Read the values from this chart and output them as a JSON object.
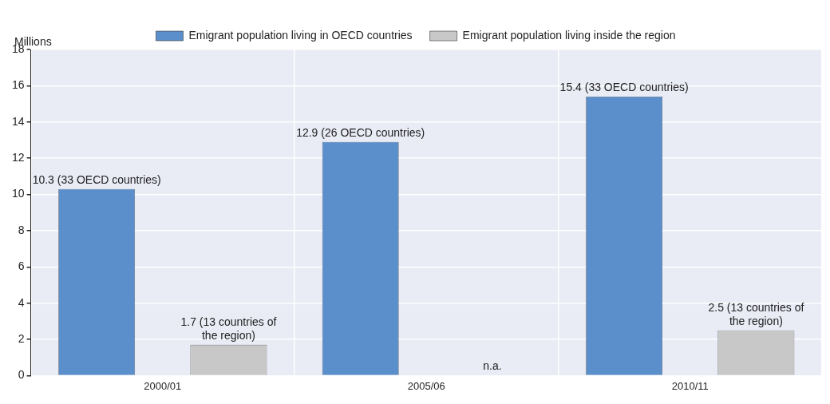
{
  "chart_data": {
    "type": "bar",
    "ylabel": "Millions",
    "categories": [
      "2000/01",
      "2005/06",
      "2010/11"
    ],
    "series": [
      {
        "name": "Emigrant population living in OECD countries",
        "color": "#5a8fcb",
        "values": [
          10.3,
          12.9,
          15.4
        ],
        "value_labels": [
          "10.3 (33 OECD countries)",
          "12.9 (26 OECD countries)",
          "15.4 (33 OECD countries)"
        ]
      },
      {
        "name": "Emigrant population living inside the region",
        "color": "#c8c8c8",
        "values": [
          1.7,
          null,
          2.5
        ],
        "value_labels": [
          "1.7 (13 countries of the region)",
          "n.a.",
          "2.5 (13 countries of the region)"
        ]
      }
    ],
    "ylim": [
      0,
      18
    ],
    "yticks": [
      0,
      2,
      4,
      6,
      8,
      10,
      12,
      14,
      16,
      18
    ],
    "grid": true,
    "legend": "top"
  }
}
